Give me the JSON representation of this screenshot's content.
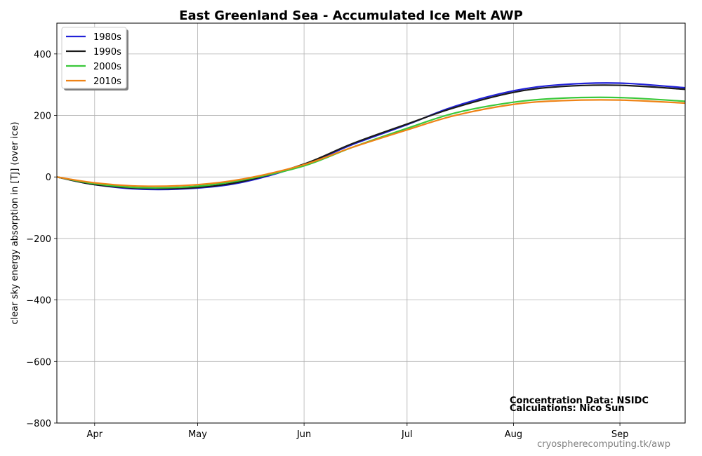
{
  "chart_data": {
    "type": "line",
    "title": "East Greenland Sea - Accumulated Ice Melt  AWP",
    "ylabel": "clear sky energy absorption in  [TJ] (over ice)",
    "xlabel": "",
    "x": [
      "Mar 21",
      "Apr 1",
      "Apr 15",
      "May 1",
      "May 15",
      "Jun 1",
      "Jun 15",
      "Jul 1",
      "Jul 15",
      "Aug 1",
      "Aug 15",
      "Sep 1",
      "Sep 20"
    ],
    "xlim": [
      "Mar 21",
      "Sep 20"
    ],
    "x_ticks": [
      {
        "label": "Apr",
        "date": "Apr 1"
      },
      {
        "label": "May",
        "date": "May 1"
      },
      {
        "label": "Jun",
        "date": "Jun 1"
      },
      {
        "label": "Jul",
        "date": "Jul 1"
      },
      {
        "label": "Aug",
        "date": "Aug 1"
      },
      {
        "label": "Sep",
        "date": "Sep 1"
      }
    ],
    "ylim": [
      -800,
      500
    ],
    "y_ticks": [
      -800,
      -600,
      -400,
      -200,
      0,
      200,
      400
    ],
    "y_tick_labels": [
      "−800",
      "−600",
      "−400",
      "−200",
      "0",
      "200",
      "400"
    ],
    "grid": true,
    "legend_position": "top-left",
    "series": [
      {
        "name": "1980s",
        "color": "#2121d8",
        "values": [
          0,
          -25,
          -40,
          -36,
          -15,
          40,
          105,
          170,
          230,
          280,
          300,
          305,
          290
        ]
      },
      {
        "name": "1990s",
        "color": "#1a1a1a",
        "values": [
          0,
          -25,
          -37,
          -34,
          -12,
          42,
          108,
          172,
          226,
          275,
          294,
          298,
          285
        ]
      },
      {
        "name": "2000s",
        "color": "#3ac83a",
        "values": [
          0,
          -22,
          -35,
          -30,
          -8,
          36,
          96,
          158,
          208,
          243,
          256,
          258,
          246
        ]
      },
      {
        "name": "2010s",
        "color": "#ef8316",
        "values": [
          0,
          -19,
          -30,
          -25,
          -5,
          40,
          96,
          153,
          200,
          236,
          248,
          250,
          240
        ]
      }
    ],
    "annotations": [
      "Concentration Data: NSIDC",
      "Calculations: Nico Sun"
    ],
    "credit": "cryospherecomputing.tk/awp"
  }
}
